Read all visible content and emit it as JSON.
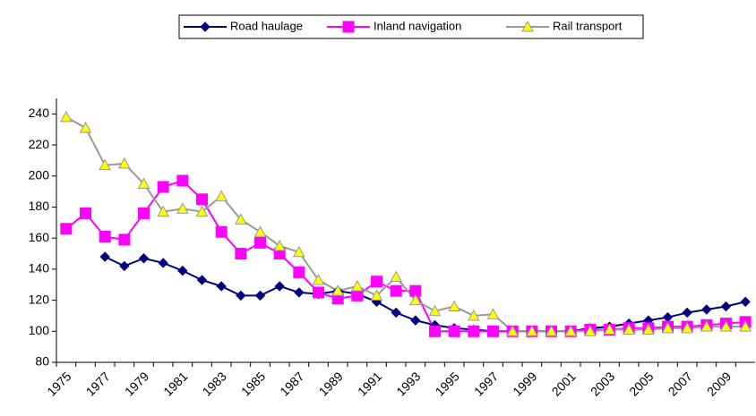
{
  "chart_data": {
    "type": "line",
    "categories": [
      "1975",
      null,
      "1977",
      null,
      "1979",
      null,
      "1981",
      null,
      "1983",
      null,
      "1985",
      null,
      "1987",
      null,
      "1989",
      null,
      "1991",
      null,
      "1993",
      null,
      "1995",
      null,
      "1997",
      null,
      "1999",
      null,
      "2001",
      null,
      "2003",
      null,
      "2005",
      null,
      "2007",
      null,
      "2009",
      null
    ],
    "series": [
      {
        "name": "Road haulage",
        "color": "#000080",
        "marker": "diamond",
        "marker_fill": "#000080",
        "values": [
          null,
          null,
          148,
          142,
          147,
          144,
          139,
          133,
          129,
          123,
          123,
          129,
          125,
          124,
          126,
          124,
          119,
          112,
          107,
          104,
          102,
          101,
          100,
          100,
          100,
          100,
          100,
          102,
          103,
          105,
          107,
          109,
          112,
          114,
          116,
          119
        ]
      },
      {
        "name": "Inland navigation",
        "color": "#ff00ff",
        "marker": "square",
        "marker_fill": "#ff00ff",
        "values": [
          166,
          176,
          161,
          159,
          176,
          193,
          197,
          185,
          164,
          150,
          157,
          150,
          138,
          125,
          121,
          123,
          132,
          126,
          126,
          100,
          100,
          100,
          100,
          100,
          100,
          100,
          100,
          101,
          101,
          102,
          102,
          103,
          103,
          104,
          105,
          106
        ]
      },
      {
        "name": "Rail transport",
        "color": "#999999",
        "marker": "triangle",
        "marker_fill": "#ffff00",
        "values": [
          238,
          231,
          207,
          208,
          195,
          177,
          179,
          177,
          187,
          172,
          164,
          155,
          151,
          133,
          126,
          129,
          123,
          135,
          120,
          113,
          116,
          110,
          111,
          100,
          100,
          100,
          100,
          100,
          101,
          101,
          101,
          102,
          102,
          103,
          103,
          103
        ]
      }
    ],
    "ylim": [
      80,
      250
    ],
    "yticks": [
      80,
      100,
      120,
      140,
      160,
      180,
      200,
      220,
      240
    ],
    "legend": "top",
    "grid": false
  }
}
